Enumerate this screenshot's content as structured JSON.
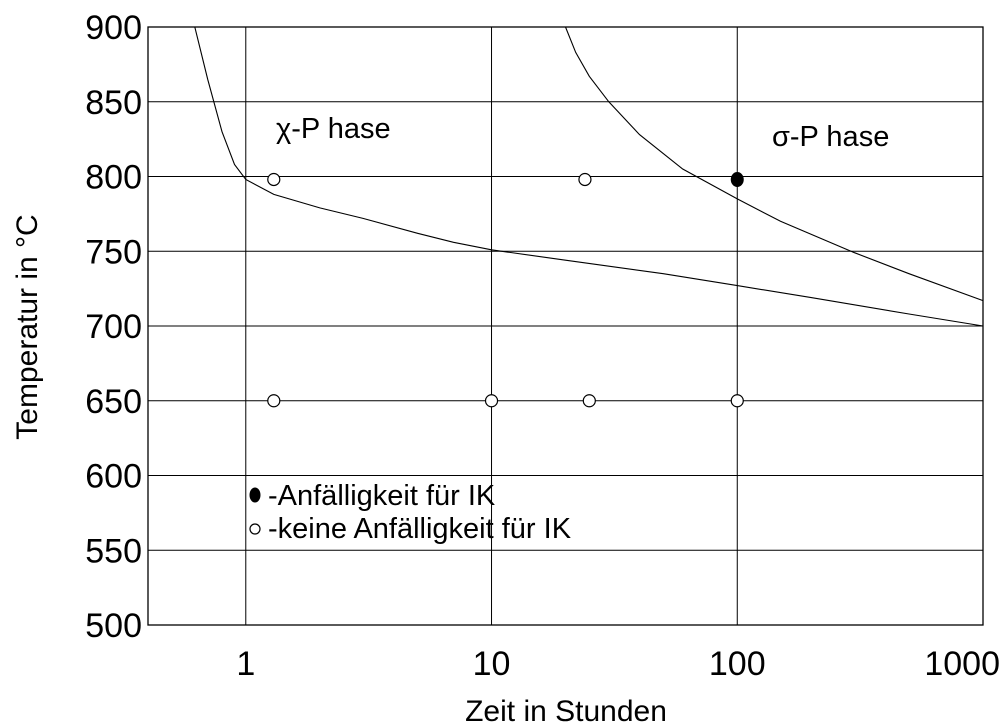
{
  "chart_data": {
    "type": "line",
    "title": "",
    "xlabel": "Zeit in Stunden",
    "ylabel": "Temperatur in °C",
    "x_scale": "log",
    "xlim": [
      0.4,
      1000
    ],
    "ylim": [
      500,
      900
    ],
    "x_ticks": [
      1,
      10,
      100,
      1000
    ],
    "x_tick_labels": [
      "1",
      "10",
      "100",
      "1000"
    ],
    "y_ticks": [
      500,
      550,
      600,
      650,
      700,
      750,
      800,
      850,
      900
    ],
    "y_tick_labels": [
      "500",
      "550",
      "600",
      "650",
      "700",
      "750",
      "800",
      "850",
      "900"
    ],
    "grid": true,
    "series": [
      {
        "curve_id": "chi-boundary",
        "x": [
          0.62,
          0.7,
          0.8,
          0.9,
          1.0,
          1.3,
          2,
          3,
          5,
          7,
          10,
          20,
          50,
          100,
          200,
          500,
          1000
        ],
        "y": [
          900,
          865,
          830,
          808,
          798,
          788,
          779,
          772,
          762,
          756,
          751,
          744,
          735,
          727,
          719,
          708,
          700
        ]
      },
      {
        "curve_id": "sigma-boundary",
        "x": [
          20,
          22,
          25,
          30,
          40,
          60,
          100,
          150,
          300,
          500,
          1000
        ],
        "y": [
          900,
          883,
          867,
          850,
          828,
          805,
          785,
          770,
          749,
          735,
          717
        ]
      }
    ],
    "points": [
      {
        "x": 1.3,
        "y": 798,
        "filled": false
      },
      {
        "x": 24,
        "y": 798,
        "filled": false
      },
      {
        "x": 100,
        "y": 798,
        "filled": true
      },
      {
        "x": 1.3,
        "y": 650,
        "filled": false
      },
      {
        "x": 10,
        "y": 650,
        "filled": false
      },
      {
        "x": 25,
        "y": 650,
        "filled": false
      },
      {
        "x": 100,
        "y": 650,
        "filled": false
      }
    ],
    "annotations": {
      "chi_phase": "χ-P hase",
      "sigma_phase": "σ-P hase"
    },
    "legend": {
      "placement": "lower-left",
      "entries": [
        {
          "marker": "filled",
          "label": "-Anfälligkeit für IK"
        },
        {
          "marker": "open",
          "label": "-keine Anfälligkeit für IK"
        }
      ]
    }
  }
}
